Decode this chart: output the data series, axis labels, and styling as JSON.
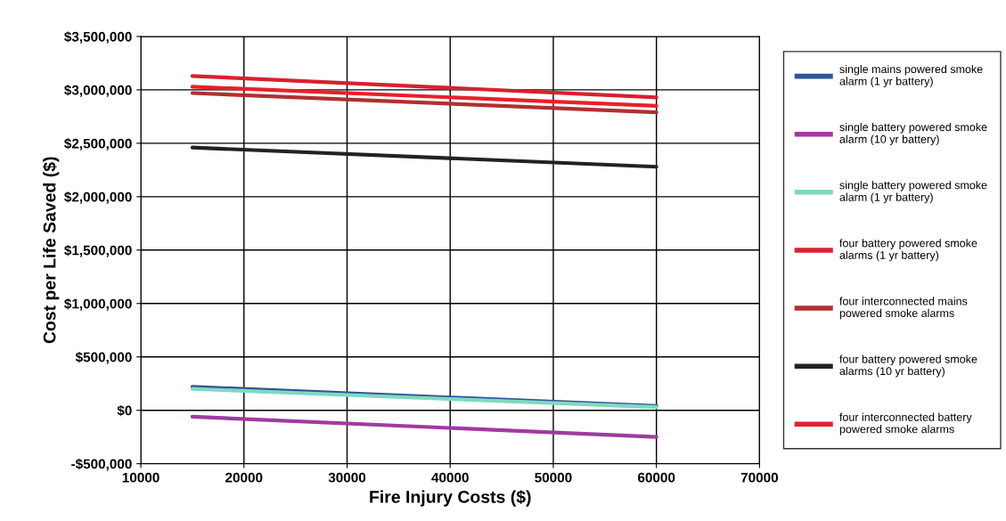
{
  "chart_data": {
    "type": "line",
    "xlabel": "Fire Injury Costs ($)",
    "ylabel": "Cost per Life Saved ($)",
    "xlim": [
      10000,
      70000
    ],
    "xticks": [
      10000,
      20000,
      30000,
      40000,
      50000,
      60000,
      70000
    ],
    "ylim": [
      -500000,
      3500000
    ],
    "yticks": [
      {
        "value": -500000,
        "label": "-$500,000"
      },
      {
        "value": 0,
        "label": "$0"
      },
      {
        "value": 500000,
        "label": "$500,000"
      },
      {
        "value": 1000000,
        "label": "$1,000,000"
      },
      {
        "value": 1500000,
        "label": "$1,500,000"
      },
      {
        "value": 2000000,
        "label": "$2,000,000"
      },
      {
        "value": 2500000,
        "label": "$2,500,000"
      },
      {
        "value": 3000000,
        "label": "$3,000,000"
      },
      {
        "value": 3500000,
        "label": "$3,500,000"
      }
    ],
    "x": [
      15000,
      60000
    ],
    "grid": true,
    "legend": "right",
    "series": [
      {
        "name": "single mains powered smoke alarm (1 yr battery)",
        "color": "#2f5597",
        "values": [
          220000,
          40000
        ]
      },
      {
        "name": "single battery powered smoke alarm (10 yr battery)",
        "color": "#a03aa0",
        "values": [
          -60000,
          -250000
        ]
      },
      {
        "name": "single battery powered smoke alarm (1 yr battery)",
        "color": "#7fd9c0",
        "values": [
          200000,
          30000
        ]
      },
      {
        "name": "four battery powered smoke alarms (1 yr battery)",
        "color": "#d7212f",
        "values": [
          3130000,
          2930000
        ]
      },
      {
        "name": "four interconnected mains powered smoke alarms",
        "color": "#b03030",
        "values": [
          2970000,
          2790000
        ]
      },
      {
        "name": "four battery powered smoke alarms (10 yr battery)",
        "color": "#222222",
        "values": [
          2460000,
          2280000
        ]
      },
      {
        "name": "four interconnected battery powered smoke alarms",
        "color": "#e8202a",
        "values": [
          3030000,
          2850000
        ]
      }
    ]
  }
}
